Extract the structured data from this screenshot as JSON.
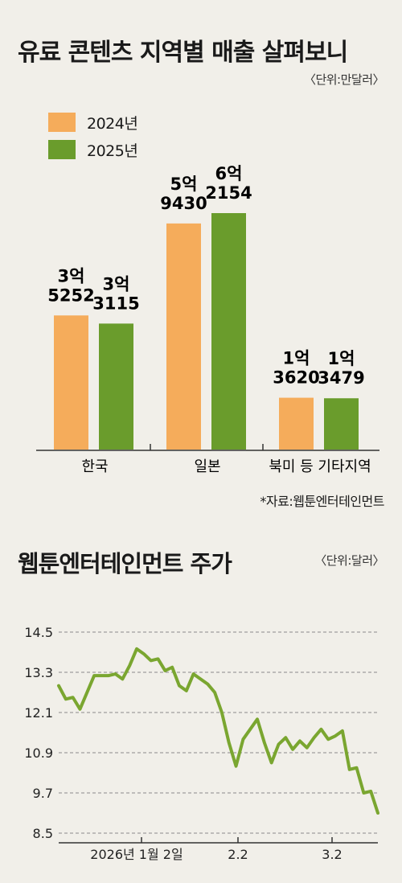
{
  "bar_chart": {
    "title": "유료 콘텐츠 지역별 매출 살펴보니",
    "unit": "〈단위:만달러〉",
    "source": "*자료:웹툰엔터테인먼트",
    "colors": {
      "2024년": "#f5ac5b",
      "2025년": "#6a9c2c"
    }
  },
  "line_chart": {
    "title": "웹툰엔터테인먼트 주가",
    "unit": "〈단위:달러〉",
    "color": "#7aa630"
  },
  "chart_data": [
    {
      "type": "bar",
      "title": "유료 콘텐츠 지역별 매출 살펴보니",
      "categories": [
        "한국",
        "일본",
        "북미 등 기타지역"
      ],
      "series": [
        {
          "name": "2024년",
          "values": [
            35252,
            59430,
            13620
          ],
          "labels": [
            [
              "3억",
              "5252"
            ],
            [
              "5억",
              "9430"
            ],
            [
              "1억",
              "3620"
            ]
          ]
        },
        {
          "name": "2025년",
          "values": [
            33115,
            62154,
            13479
          ],
          "labels": [
            [
              "3억",
              "3115"
            ],
            [
              "6억",
              "2154"
            ],
            [
              "1억",
              "3479"
            ]
          ]
        }
      ],
      "legend": "top-left",
      "grid": false
    },
    {
      "type": "line",
      "title": "웹툰엔터테인먼트 주가",
      "x_tick_labels": [
        "2026년 1월 2일",
        "2.2",
        "3.2"
      ],
      "y_ticks": [
        "14.5",
        "13.3",
        "12.1",
        "10.9",
        "9.7",
        "8.5"
      ],
      "ylim": [
        8.5,
        14.5
      ],
      "grid": true,
      "values": [
        12.9,
        12.5,
        12.55,
        12.2,
        12.7,
        13.2,
        13.2,
        13.2,
        13.25,
        13.1,
        13.5,
        14.0,
        13.85,
        13.65,
        13.7,
        13.35,
        13.45,
        12.9,
        12.75,
        13.25,
        13.1,
        12.95,
        12.7,
        12.1,
        11.2,
        10.5,
        11.3,
        11.6,
        11.9,
        11.2,
        10.6,
        11.15,
        11.35,
        11.0,
        11.25,
        11.05,
        11.35,
        11.6,
        11.3,
        11.4,
        11.55,
        10.4,
        10.45,
        9.7,
        9.75,
        9.1
      ]
    }
  ]
}
